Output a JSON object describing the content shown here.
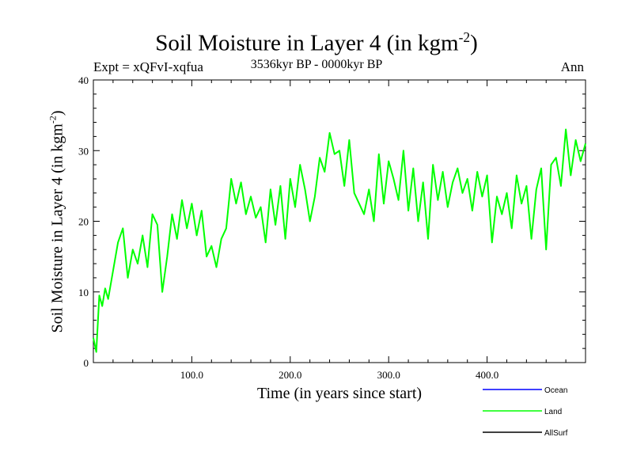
{
  "header": {
    "title_main": "Soil Moisture in Layer 4 (in kgm",
    "title_sup": "-2",
    "title_close": ")",
    "subtitle": "3536kyr BP - 0000kyr BP",
    "expt": "Expt = xQFvI-xqfua",
    "season": "Ann"
  },
  "axes": {
    "xlabel": "Time (in years since start)",
    "ylabel_main": "Soil Moisture in Layer 4 (in kgm",
    "ylabel_sup": "-2",
    "ylabel_close": ")"
  },
  "chart_data": {
    "type": "line",
    "title": "Soil Moisture in Layer 4 (in kgm-2)",
    "xlabel": "Time (in years since start)",
    "ylabel": "Soil Moisture in Layer 4 (in kgm-2)",
    "xlim": [
      0,
      500
    ],
    "ylim": [
      0,
      40
    ],
    "xticks": [
      100,
      200,
      300,
      400
    ],
    "xtick_labels": [
      "100.0",
      "200.0",
      "300.0",
      "400.0"
    ],
    "yticks": [
      0,
      10,
      20,
      30,
      40
    ],
    "ytick_labels": [
      "0",
      "10",
      "20",
      "30",
      "40"
    ],
    "legend": [
      "Ocean",
      "Land",
      "AllSurf"
    ],
    "legend_placement": "bottom-right",
    "series": [
      {
        "name": "Ocean",
        "color": "#0000ff",
        "values": []
      },
      {
        "name": "Land",
        "color": "#00ff00",
        "x": [
          0,
          3,
          6,
          9,
          12,
          15,
          20,
          25,
          30,
          35,
          40,
          45,
          50,
          55,
          60,
          65,
          70,
          75,
          80,
          85,
          90,
          95,
          100,
          105,
          110,
          115,
          120,
          125,
          130,
          135,
          140,
          145,
          150,
          155,
          160,
          165,
          170,
          175,
          180,
          185,
          190,
          195,
          200,
          205,
          210,
          215,
          220,
          225,
          230,
          235,
          240,
          245,
          250,
          255,
          260,
          265,
          270,
          275,
          280,
          285,
          290,
          295,
          300,
          305,
          310,
          315,
          320,
          325,
          330,
          335,
          340,
          345,
          350,
          355,
          360,
          365,
          370,
          375,
          380,
          385,
          390,
          395,
          400,
          405,
          410,
          415,
          420,
          425,
          430,
          435,
          440,
          445,
          450,
          455,
          460,
          465,
          470,
          475,
          480,
          485,
          490,
          495,
          500
        ],
        "values": [
          3.5,
          1.5,
          9.5,
          8.0,
          10.5,
          9.0,
          13.0,
          17.0,
          19.0,
          12.0,
          16.0,
          14.0,
          18.0,
          13.5,
          21.0,
          19.5,
          10.0,
          15.0,
          21.0,
          17.5,
          23.0,
          19.0,
          22.5,
          18.0,
          21.5,
          15.0,
          16.5,
          13.5,
          17.5,
          19.0,
          26.0,
          22.5,
          25.5,
          21.0,
          23.5,
          20.5,
          22.0,
          17.0,
          24.5,
          19.5,
          25.0,
          17.5,
          26.0,
          22.0,
          28.0,
          24.5,
          20.0,
          23.5,
          29.0,
          27.0,
          32.5,
          29.5,
          30.0,
          25.0,
          31.5,
          24.0,
          22.5,
          21.0,
          24.5,
          20.0,
          29.5,
          22.5,
          28.5,
          26.0,
          23.0,
          30.0,
          21.5,
          27.5,
          20.0,
          25.5,
          17.5,
          28.0,
          23.0,
          27.0,
          22.0,
          25.5,
          27.5,
          24.0,
          26.0,
          21.5,
          27.0,
          23.5,
          26.5,
          17.0,
          23.5,
          21.0,
          24.0,
          19.0,
          26.5,
          22.5,
          25.0,
          17.5,
          24.5,
          27.5,
          16.0,
          28.0,
          29.0,
          25.0,
          33.0,
          26.5,
          31.5,
          28.5,
          31.0
        ]
      },
      {
        "name": "AllSurf",
        "color": "#000000",
        "values": []
      }
    ]
  }
}
